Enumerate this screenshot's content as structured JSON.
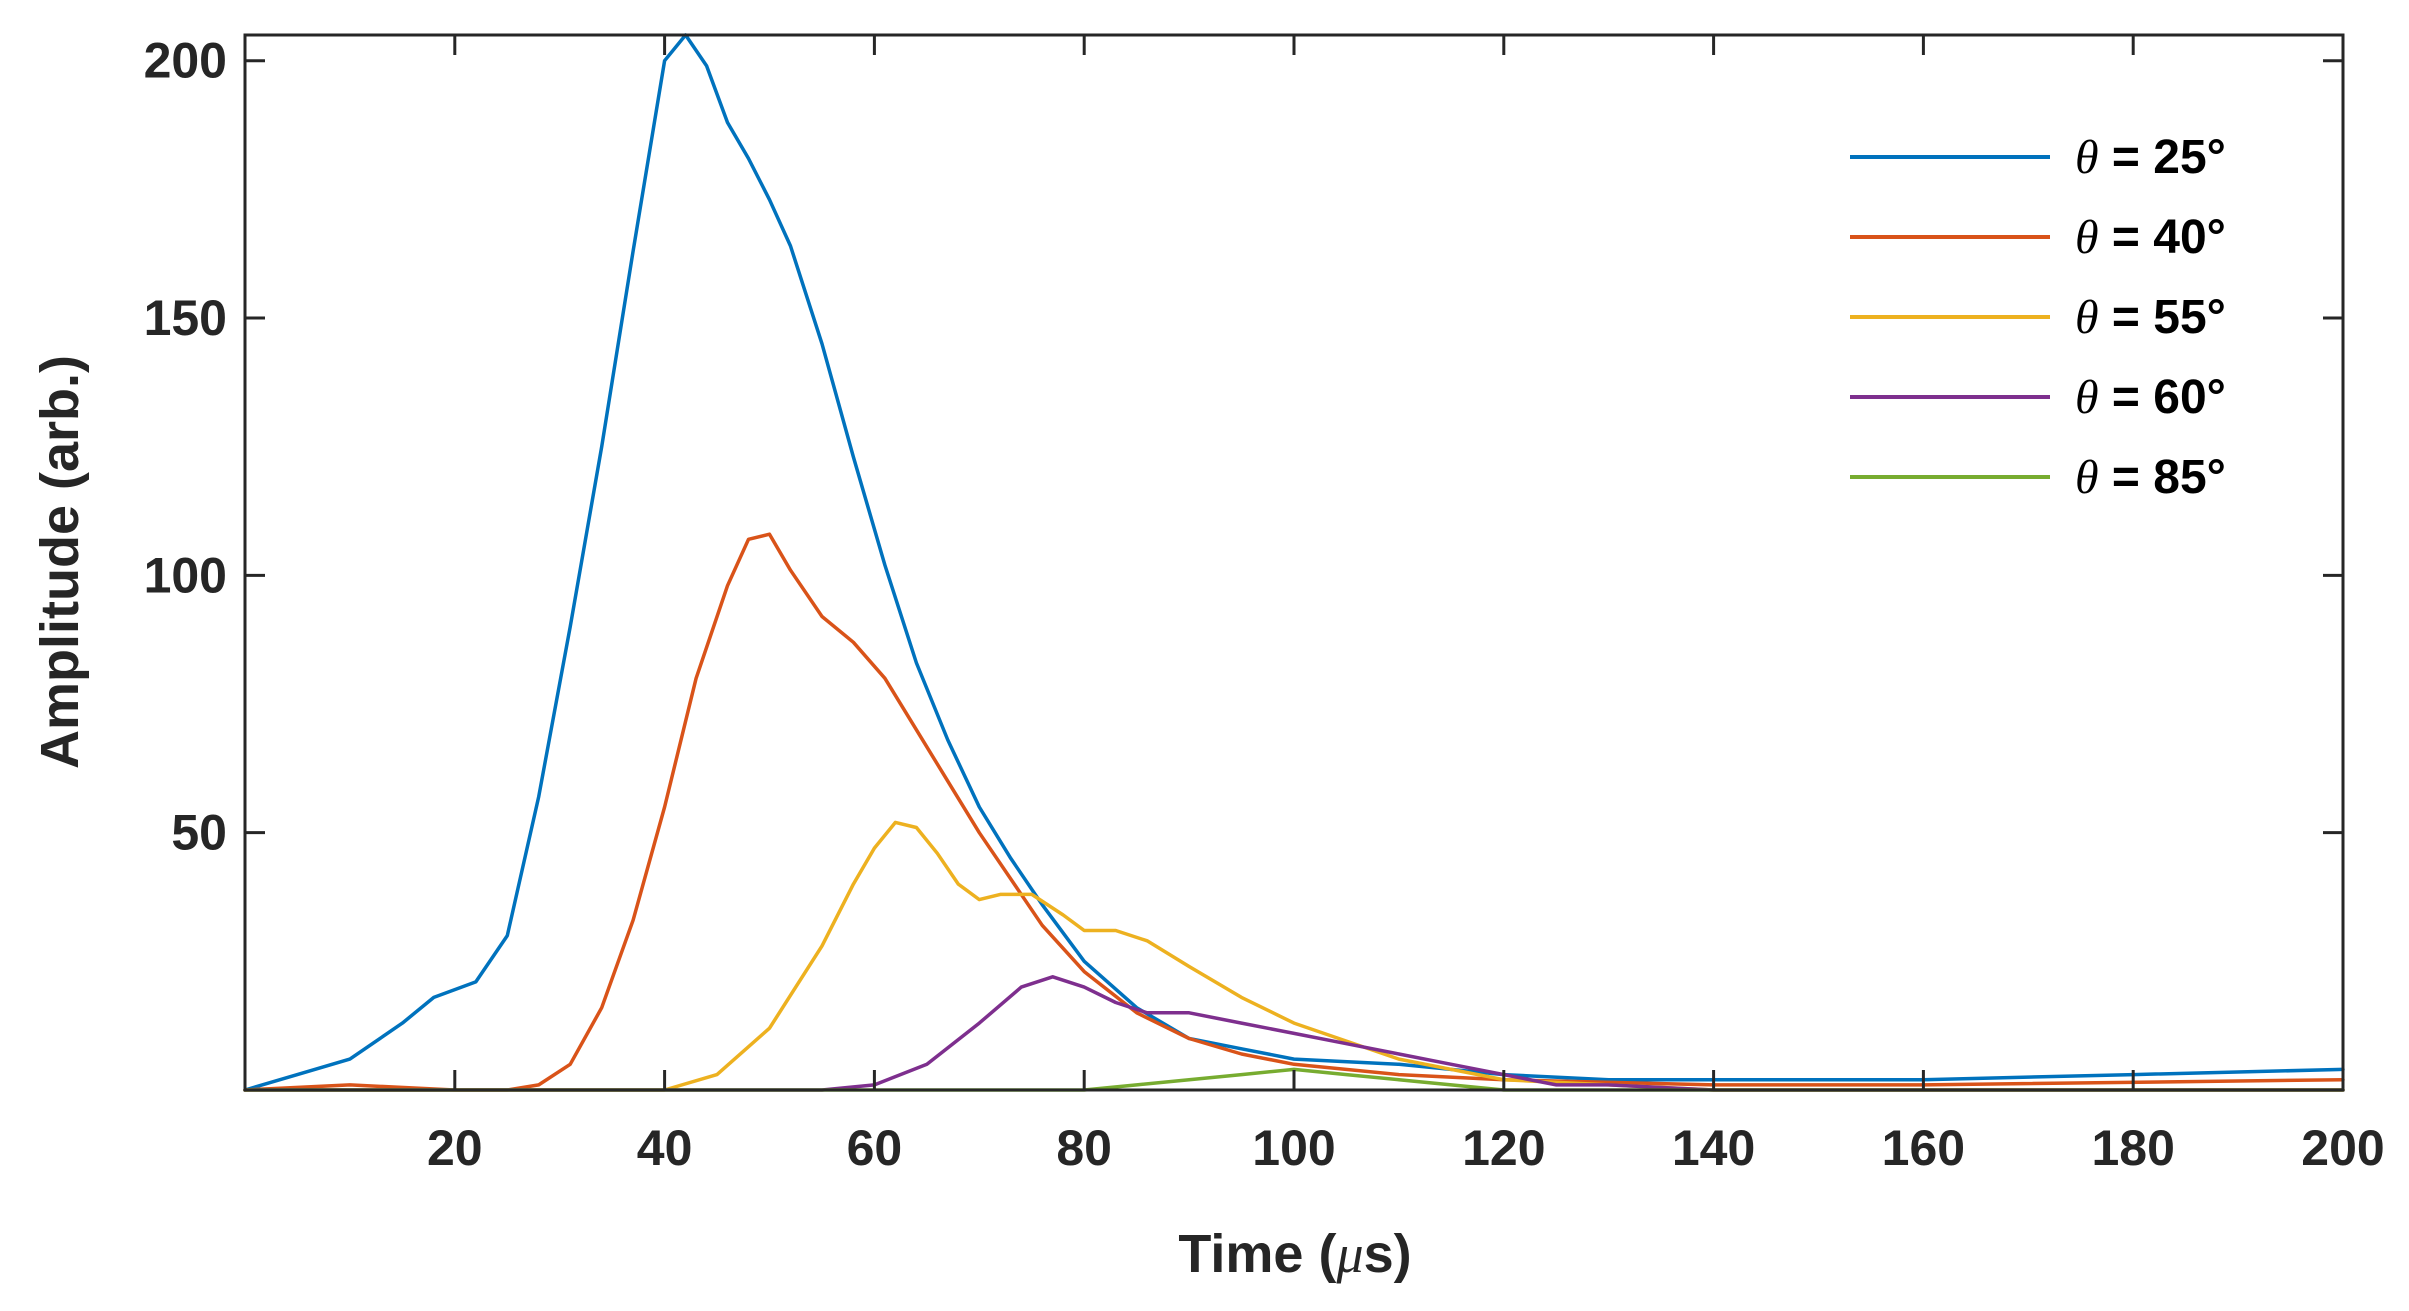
{
  "chart_data": {
    "type": "line",
    "title": "",
    "xlabel_prefix": "Time (",
    "xlabel_unit_symbol": "μ",
    "xlabel_suffix": "s)",
    "ylabel": "Amplitude (arb.)",
    "xlim": [
      0,
      200
    ],
    "ylim": [
      0,
      205
    ],
    "xticks": [
      20,
      40,
      60,
      80,
      100,
      120,
      140,
      160,
      180,
      200
    ],
    "yticks": [
      50,
      100,
      150,
      200
    ],
    "grid": false,
    "legend_position": "top-right",
    "series": [
      {
        "name": "θ = 25°",
        "symbol": "θ",
        "label": " = 25°",
        "color": "#0072BD",
        "x": [
          0,
          5,
          10,
          15,
          18,
          22,
          25,
          28,
          31,
          34,
          37,
          40,
          42,
          44,
          46,
          48,
          50,
          52,
          55,
          58,
          61,
          64,
          67,
          70,
          73,
          76,
          80,
          85,
          90,
          95,
          100,
          110,
          120,
          130,
          140,
          160,
          180,
          200
        ],
        "values": [
          0,
          3,
          6,
          13,
          18,
          21,
          30,
          57,
          90,
          125,
          163,
          200,
          205,
          199,
          188,
          181,
          173,
          164,
          145,
          123,
          102,
          83,
          68,
          55,
          45,
          36,
          25,
          16,
          10,
          8,
          6,
          5,
          3,
          2,
          2,
          2,
          3,
          4
        ]
      },
      {
        "name": "θ = 40°",
        "symbol": "θ",
        "label": " = 40°",
        "color": "#D95319",
        "x": [
          0,
          10,
          20,
          25,
          28,
          31,
          34,
          37,
          40,
          43,
          46,
          48,
          50,
          52,
          55,
          58,
          61,
          64,
          67,
          70,
          73,
          76,
          80,
          85,
          90,
          95,
          100,
          110,
          120,
          140,
          160,
          200
        ],
        "values": [
          0,
          1,
          0,
          0,
          1,
          5,
          16,
          33,
          55,
          80,
          98,
          107,
          108,
          101,
          92,
          87,
          80,
          70,
          60,
          50,
          41,
          32,
          23,
          15,
          10,
          7,
          5,
          3,
          2,
          1,
          1,
          2
        ]
      },
      {
        "name": "θ = 55°",
        "symbol": "θ",
        "label": " = 55°",
        "color": "#EDB120",
        "x": [
          0,
          40,
          45,
          50,
          55,
          58,
          60,
          62,
          64,
          66,
          68,
          70,
          72,
          75,
          78,
          80,
          83,
          86,
          90,
          95,
          100,
          110,
          120,
          140,
          200
        ],
        "values": [
          0,
          0,
          3,
          12,
          28,
          40,
          47,
          52,
          51,
          46,
          40,
          37,
          38,
          38,
          34,
          31,
          31,
          29,
          24,
          18,
          13,
          6,
          2,
          0,
          0
        ]
      },
      {
        "name": "θ = 60°",
        "symbol": "θ",
        "label": " = 60°",
        "color": "#7E2F8E",
        "x": [
          0,
          55,
          60,
          65,
          70,
          74,
          77,
          80,
          83,
          86,
          90,
          95,
          100,
          105,
          110,
          115,
          120,
          125,
          130,
          140,
          200
        ],
        "values": [
          0,
          0,
          1,
          5,
          13,
          20,
          22,
          20,
          17,
          15,
          15,
          13,
          11,
          9,
          7,
          5,
          3,
          1,
          1,
          0,
          0
        ]
      },
      {
        "name": "θ = 85°",
        "symbol": "θ",
        "label": " = 85°",
        "color": "#77AC30",
        "x": [
          0,
          80,
          85,
          90,
          95,
          100,
          105,
          110,
          115,
          120,
          200
        ],
        "values": [
          0,
          0,
          1,
          2,
          3,
          4,
          3,
          2,
          1,
          0,
          0
        ]
      }
    ]
  }
}
